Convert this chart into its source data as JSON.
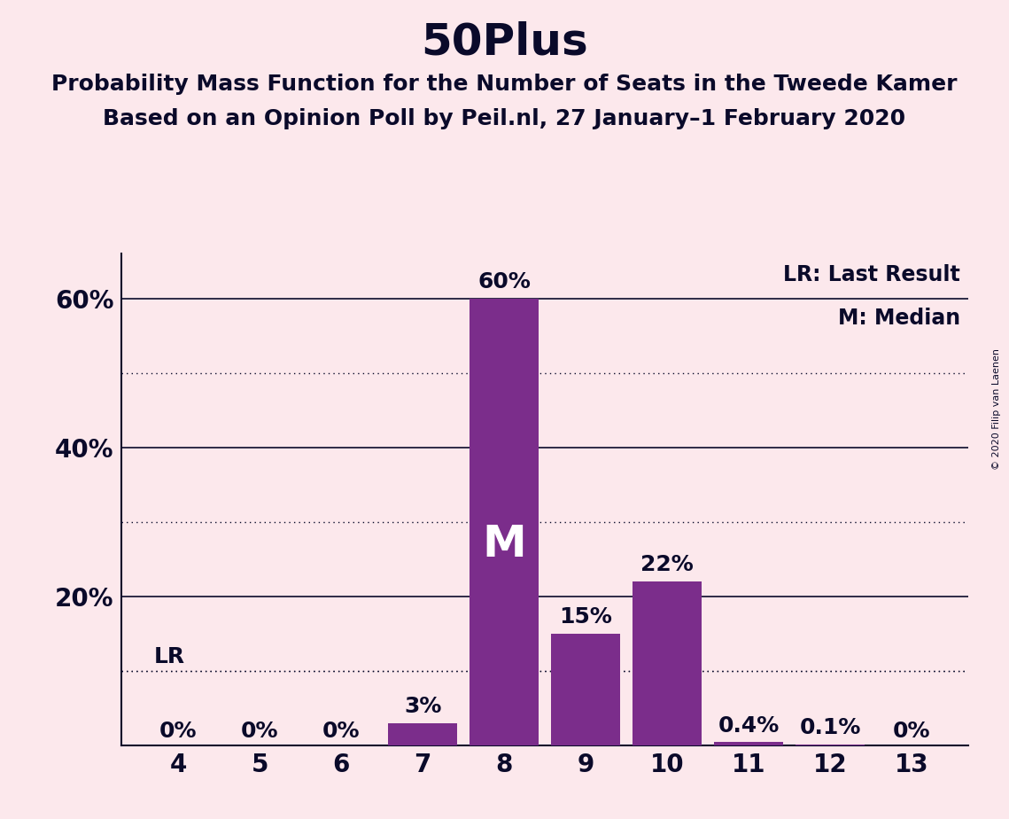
{
  "title": "50Plus",
  "subtitle1": "Probability Mass Function for the Number of Seats in the Tweede Kamer",
  "subtitle2": "Based on an Opinion Poll by Peil.nl, 27 January–1 February 2020",
  "copyright": "© 2020 Filip van Laenen",
  "categories": [
    4,
    5,
    6,
    7,
    8,
    9,
    10,
    11,
    12,
    13
  ],
  "values": [
    0.0,
    0.0,
    0.0,
    3.0,
    60.0,
    15.0,
    22.0,
    0.4,
    0.1,
    0.0
  ],
  "bar_labels": [
    "0%",
    "0%",
    "0%",
    "3%",
    "60%",
    "15%",
    "22%",
    "0.4%",
    "0.1%",
    "0%"
  ],
  "bar_color": "#7B2D8B",
  "background_color": "#fce8ec",
  "text_color": "#0a0a2a",
  "ylim": [
    0,
    66
  ],
  "yticks": [
    20,
    40,
    60
  ],
  "ytick_labels": [
    "20%",
    "40%",
    "60%"
  ],
  "dotted_lines": [
    10,
    30,
    50
  ],
  "solid_lines": [
    20,
    40,
    60
  ],
  "lr_value": 10.0,
  "lr_seat": 4,
  "median_seat": 8,
  "legend_lr": "LR: Last Result",
  "legend_m": "M: Median",
  "title_fontsize": 36,
  "subtitle_fontsize": 18,
  "label_fontsize": 18,
  "tick_fontsize": 20,
  "median_fontsize": 36,
  "copyright_fontsize": 8
}
